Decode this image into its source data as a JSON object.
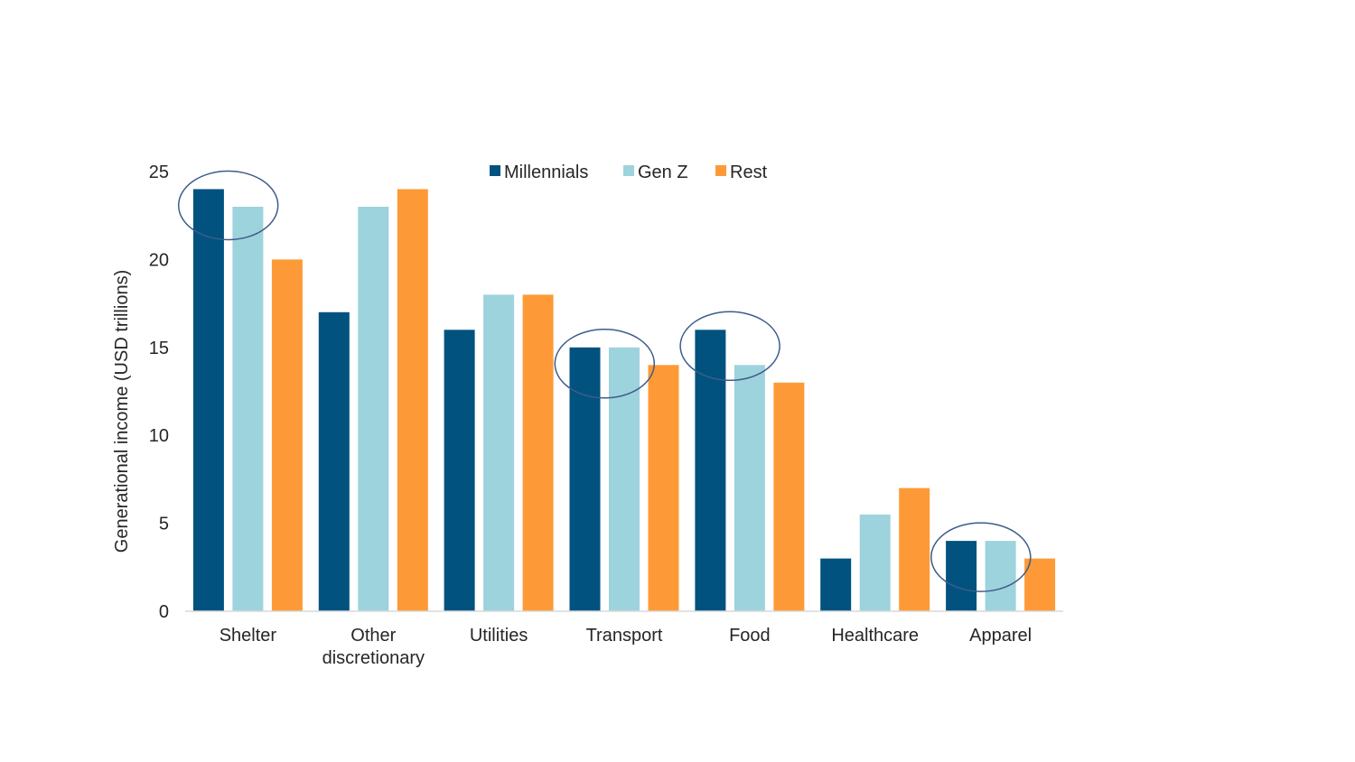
{
  "chart_data": {
    "type": "bar",
    "title": "",
    "xlabel": "",
    "ylabel": "Generational income (USD trillions)",
    "ylim": [
      0,
      25
    ],
    "yticks": [
      0,
      5,
      10,
      15,
      20,
      25
    ],
    "grid": false,
    "legend_position": "top",
    "categories": [
      [
        "Shelter"
      ],
      [
        "Other",
        "discretionary"
      ],
      [
        "Utilities"
      ],
      [
        "Transport"
      ],
      [
        "Food"
      ],
      [
        "Healthcare"
      ],
      [
        "Apparel"
      ]
    ],
    "series": [
      {
        "name": "Millennials",
        "color": "#01527f",
        "values": [
          24,
          17,
          16,
          15,
          16,
          3,
          4
        ]
      },
      {
        "name": "Gen Z",
        "color": "#9dd3dc",
        "values": [
          23,
          23,
          18,
          15,
          14,
          5.5,
          4
        ]
      },
      {
        "name": "Rest",
        "color": "#fd9a37",
        "values": [
          20,
          24,
          18,
          14,
          13,
          7,
          3
        ]
      }
    ],
    "highlighted_categories": [
      "Shelter",
      "Transport",
      "Food",
      "Apparel"
    ],
    "highlight_color": "#3e5c8a"
  }
}
